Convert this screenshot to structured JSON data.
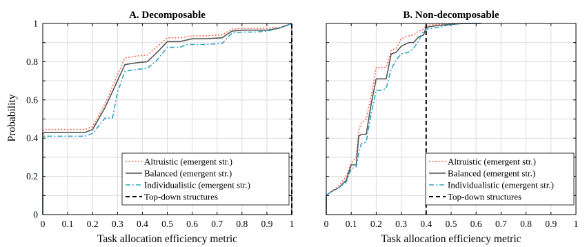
{
  "figure": {
    "ylabel": "Probability"
  },
  "colors": {
    "altruistic": "#ff6347",
    "balanced": "#555555",
    "individualistic": "#2ea3c7",
    "topdown": "#000000",
    "grid": "#dcdcdc"
  },
  "chart_data": [
    {
      "type": "line",
      "title": "A. Decomposable",
      "xlabel": "Task allocation efficiency metric",
      "ylabel": "Probability",
      "xlim": [
        0,
        1
      ],
      "ylim": [
        0,
        1
      ],
      "xticks": [
        "0",
        "0.1",
        "0.2",
        "0.3",
        "0.4",
        "0.5",
        "0.6",
        "0.7",
        "0.8",
        "0.9",
        "1"
      ],
      "yticks": [
        "0",
        "0.2",
        "0.4",
        "0.6",
        "0.8",
        "1"
      ],
      "grid": true,
      "legend_position": "bottom-right",
      "legend": [
        "Altruistic (emergent str.)",
        "Balanced (emergent str.)",
        "Individualistic (emergent str.)",
        "Top-down structures"
      ],
      "series": [
        {
          "name": "Altruistic (emergent str.)",
          "style": "dotted",
          "x": [
            0.0,
            0.0,
            0.01,
            0.17,
            0.2,
            0.25,
            0.3,
            0.33,
            0.38,
            0.42,
            0.46,
            0.5,
            0.53,
            0.55,
            0.6,
            0.65,
            0.72,
            0.76,
            0.8,
            0.85,
            0.9,
            0.95,
            0.98,
            1.0
          ],
          "y": [
            0.0,
            0.44,
            0.445,
            0.445,
            0.46,
            0.58,
            0.73,
            0.82,
            0.83,
            0.835,
            0.88,
            0.925,
            0.925,
            0.925,
            0.935,
            0.935,
            0.94,
            0.97,
            0.975,
            0.975,
            0.975,
            0.98,
            0.99,
            1.0
          ]
        },
        {
          "name": "Balanced (emergent str.)",
          "style": "solid",
          "x": [
            0.0,
            0.0,
            0.01,
            0.17,
            0.2,
            0.25,
            0.3,
            0.33,
            0.38,
            0.42,
            0.46,
            0.5,
            0.55,
            0.6,
            0.65,
            0.72,
            0.76,
            0.8,
            0.85,
            0.9,
            0.95,
            0.98,
            1.0
          ],
          "y": [
            0.0,
            0.425,
            0.43,
            0.43,
            0.445,
            0.56,
            0.7,
            0.785,
            0.795,
            0.8,
            0.85,
            0.905,
            0.905,
            0.92,
            0.92,
            0.925,
            0.96,
            0.965,
            0.965,
            0.965,
            0.975,
            0.99,
            1.0
          ]
        },
        {
          "name": "Individualistic (emergent str.)",
          "style": "dashdot",
          "x": [
            0.0,
            0.0,
            0.01,
            0.17,
            0.2,
            0.25,
            0.28,
            0.3,
            0.33,
            0.38,
            0.42,
            0.46,
            0.5,
            0.55,
            0.58,
            0.65,
            0.72,
            0.76,
            0.8,
            0.85,
            0.9,
            0.95,
            0.98,
            1.0
          ],
          "y": [
            0.0,
            0.41,
            0.41,
            0.41,
            0.425,
            0.505,
            0.505,
            0.64,
            0.75,
            0.76,
            0.765,
            0.81,
            0.875,
            0.875,
            0.89,
            0.89,
            0.895,
            0.95,
            0.955,
            0.955,
            0.96,
            0.975,
            0.99,
            1.0
          ]
        },
        {
          "name": "Top-down structures",
          "style": "dashed",
          "x": [
            1.0,
            1.0
          ],
          "y": [
            0.0,
            1.0
          ]
        }
      ]
    },
    {
      "type": "line",
      "title": "B. Non-decomposable",
      "xlabel": "Task allocation efficiency metric",
      "xlim": [
        0,
        1
      ],
      "ylim": [
        0,
        1
      ],
      "xticks": [
        "0",
        "0.1",
        "0.2",
        "0.3",
        "0.4",
        "0.5",
        "0.6",
        "0.7",
        "0.8",
        "0.9",
        "1"
      ],
      "grid": true,
      "legend_position": "bottom-right",
      "legend": [
        "Altruistic (emergent str.)",
        "Balanced (emergent str.)",
        "Individualistic (emergent str.)",
        "Top-down structures"
      ],
      "series": [
        {
          "name": "Altruistic (emergent str.)",
          "style": "dotted",
          "x": [
            0.0,
            0.0,
            0.02,
            0.05,
            0.08,
            0.1,
            0.12,
            0.13,
            0.14,
            0.16,
            0.18,
            0.2,
            0.22,
            0.24,
            0.26,
            0.28,
            0.3,
            0.33,
            0.35,
            0.37,
            0.39,
            0.4,
            0.45,
            0.5,
            0.55,
            0.62
          ],
          "y": [
            0.0,
            0.1,
            0.12,
            0.15,
            0.2,
            0.27,
            0.3,
            0.44,
            0.48,
            0.5,
            0.62,
            0.77,
            0.77,
            0.77,
            0.86,
            0.87,
            0.92,
            0.935,
            0.94,
            0.96,
            0.97,
            0.99,
            0.995,
            1.0,
            1.0,
            1.0
          ]
        },
        {
          "name": "Balanced (emergent str.)",
          "style": "solid",
          "x": [
            0.0,
            0.0,
            0.02,
            0.05,
            0.08,
            0.1,
            0.12,
            0.13,
            0.14,
            0.16,
            0.18,
            0.2,
            0.22,
            0.24,
            0.26,
            0.28,
            0.3,
            0.33,
            0.35,
            0.37,
            0.39,
            0.4,
            0.45,
            0.5,
            0.55,
            0.62
          ],
          "y": [
            0.0,
            0.1,
            0.12,
            0.14,
            0.18,
            0.26,
            0.26,
            0.41,
            0.42,
            0.42,
            0.58,
            0.71,
            0.71,
            0.71,
            0.84,
            0.85,
            0.88,
            0.9,
            0.9,
            0.93,
            0.94,
            0.98,
            0.99,
            0.995,
            1.0,
            1.0
          ]
        },
        {
          "name": "Individualistic (emergent str.)",
          "style": "dashdot",
          "x": [
            0.0,
            0.0,
            0.02,
            0.05,
            0.08,
            0.1,
            0.12,
            0.13,
            0.14,
            0.16,
            0.18,
            0.2,
            0.22,
            0.24,
            0.26,
            0.28,
            0.3,
            0.33,
            0.35,
            0.37,
            0.39,
            0.4,
            0.45,
            0.5,
            0.55,
            0.62
          ],
          "y": [
            0.0,
            0.1,
            0.12,
            0.14,
            0.17,
            0.24,
            0.25,
            0.32,
            0.37,
            0.38,
            0.53,
            0.65,
            0.65,
            0.66,
            0.76,
            0.81,
            0.84,
            0.85,
            0.87,
            0.91,
            0.96,
            0.97,
            0.98,
            0.995,
            1.0,
            1.0
          ]
        },
        {
          "name": "Top-down structures",
          "style": "dashed",
          "x": [
            0.4,
            0.4
          ],
          "y": [
            0.0,
            1.0
          ]
        }
      ]
    }
  ]
}
